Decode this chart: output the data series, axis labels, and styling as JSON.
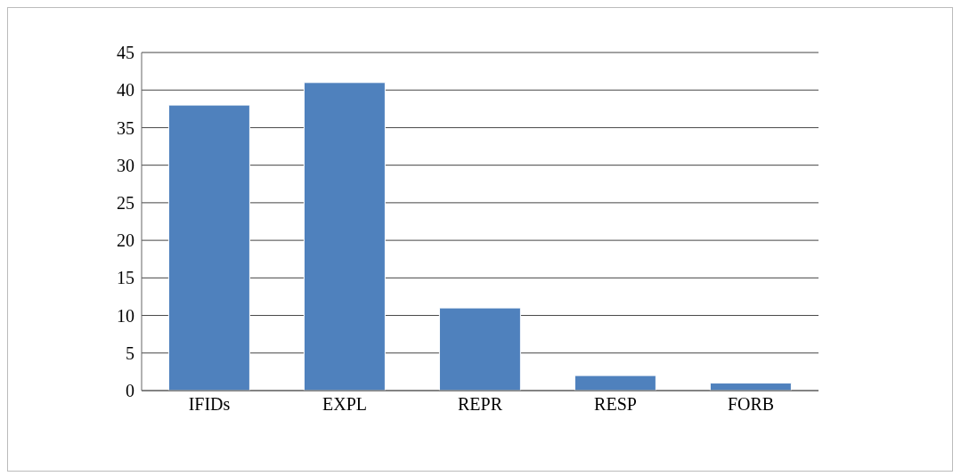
{
  "chart_data": {
    "type": "bar",
    "categories": [
      "IFIDs",
      "EXPL",
      "REPR",
      "RESP",
      "FORB"
    ],
    "values": [
      38,
      41,
      11,
      2,
      1
    ],
    "color": "#4f81bd",
    "ylim": [
      0,
      45
    ],
    "yticks": [
      0,
      5,
      10,
      15,
      20,
      25,
      30,
      35,
      40,
      45
    ],
    "grid": "y"
  }
}
